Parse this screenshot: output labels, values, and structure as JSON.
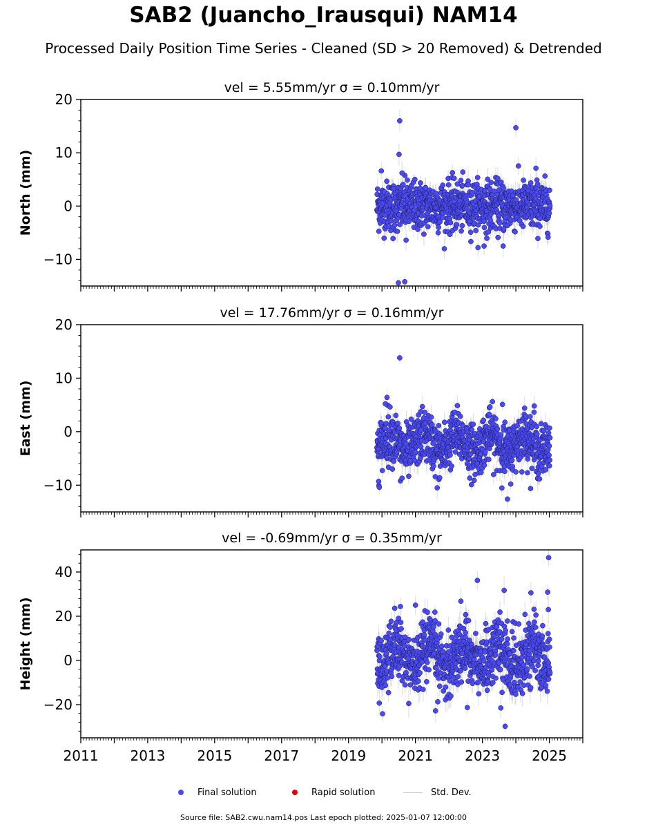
{
  "title": "SAB2 (Juancho_Irausqui) NAM14",
  "subtitle": "Processed Daily Position Time Series - Cleaned (SD > 20 Removed) & Detrended",
  "legend": {
    "final_label": "Final solution",
    "rapid_label": "Rapid solution",
    "std_label": "Std. Dev."
  },
  "footer": "Source file: SAB2.cwu.nam14.pos  Last epoch plotted: 2025-01-07 12:00:00",
  "colors": {
    "final": "#4a4af0",
    "rapid": "#e00000",
    "errorbar": "#c8c8c8"
  },
  "chart_data": [
    {
      "type": "scatter",
      "title": "vel = 5.55mm/yr   σ = 0.10mm/yr",
      "ylabel": "North (mm)",
      "xlim": [
        2011,
        2026
      ],
      "ylim": [
        -15,
        20
      ],
      "yticks": [
        "−10",
        "0",
        "10",
        "20"
      ],
      "ytick_values": [
        -10,
        0,
        10,
        20
      ],
      "series_note_range": [
        2019.85,
        2025.02
      ],
      "scatter_sd": 2.3,
      "outliers": [
        [
          2020.53,
          16.0
        ],
        [
          2020.51,
          9.7
        ],
        [
          2020.6,
          6.2
        ],
        [
          2020.49,
          -14.4
        ],
        [
          2020.68,
          -14.2
        ],
        [
          2024.0,
          14.7
        ],
        [
          2019.98,
          6.6
        ],
        [
          2024.6,
          7.1
        ],
        [
          2020.33,
          -6.1
        ],
        [
          2023.05,
          -7.5
        ],
        [
          2023.62,
          -7.5
        ],
        [
          2020.72,
          -6.4
        ]
      ]
    },
    {
      "type": "scatter",
      "title": "vel = 17.76mm/yr   σ = 0.16mm/yr",
      "ylabel": "East (mm)",
      "xlim": [
        2011,
        2026
      ],
      "ylim": [
        -15,
        20
      ],
      "yticks": [
        "−10",
        "0",
        "10",
        "20"
      ],
      "ytick_values": [
        -10,
        0,
        10,
        20
      ],
      "series_note_range": [
        2019.85,
        2025.02
      ],
      "scatter_sd": 2.4,
      "outliers": [
        [
          2020.53,
          13.8
        ],
        [
          2020.15,
          6.4
        ],
        [
          2020.1,
          5.2
        ],
        [
          2019.92,
          -10.4
        ],
        [
          2019.9,
          -9.3
        ],
        [
          2020.55,
          -9.2
        ],
        [
          2023.75,
          -12.6
        ],
        [
          2021.65,
          -10.5
        ],
        [
          2020.6,
          -8.7
        ],
        [
          2023.6,
          5.1
        ],
        [
          2024.55,
          4.8
        ]
      ]
    },
    {
      "type": "scatter",
      "title": "vel = -0.69mm/yr   σ = 0.35mm/yr",
      "ylabel": "Height (mm)",
      "xlim": [
        2011,
        2026
      ],
      "ylim": [
        -35,
        50
      ],
      "yticks": [
        "−20",
        "0",
        "20",
        "40"
      ],
      "ytick_values": [
        -20,
        0,
        20,
        40
      ],
      "series_note_range": [
        2019.85,
        2025.02
      ],
      "scatter_sd": 7.0,
      "outliers": [
        [
          2024.98,
          46.5
        ],
        [
          2022.85,
          36.2
        ],
        [
          2023.65,
          31.7
        ],
        [
          2024.95,
          30.9
        ],
        [
          2024.45,
          30.6
        ],
        [
          2020.55,
          24.4
        ],
        [
          2020.38,
          23.6
        ],
        [
          2021.0,
          25.0
        ],
        [
          2023.68,
          -29.8
        ],
        [
          2019.92,
          -19.3
        ],
        [
          2020.8,
          -19.5
        ],
        [
          2021.6,
          -22.8
        ],
        [
          2022.55,
          -21.3
        ],
        [
          2023.55,
          -21.5
        ],
        [
          2024.97,
          23.0
        ]
      ]
    }
  ],
  "xaxis": {
    "ticks": [
      "2011",
      "2013",
      "2015",
      "2017",
      "2019",
      "2021",
      "2023",
      "2025"
    ],
    "tick_values": [
      2011,
      2013,
      2015,
      2017,
      2019,
      2021,
      2023,
      2025
    ]
  }
}
